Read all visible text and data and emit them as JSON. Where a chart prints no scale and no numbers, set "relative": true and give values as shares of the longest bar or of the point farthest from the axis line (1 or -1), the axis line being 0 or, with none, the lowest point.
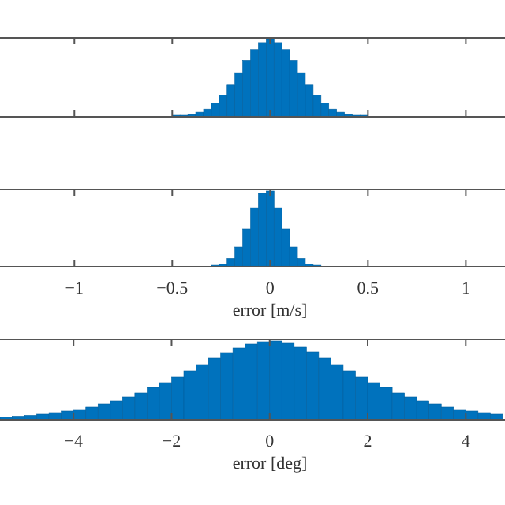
{
  "chart_data": [
    {
      "type": "bar",
      "relative": true,
      "color": "#0072bd",
      "tick_labels": false,
      "xlim": [
        -1.38,
        1.2
      ],
      "xticks": [
        -1,
        -0.5,
        0,
        0.5,
        1
      ],
      "x": [
        -0.48,
        -0.44,
        -0.4,
        -0.36,
        -0.32,
        -0.28,
        -0.24,
        -0.2,
        -0.16,
        -0.12,
        -0.08,
        -0.04,
        0,
        0.04,
        0.08,
        0.12,
        0.16,
        0.2,
        0.24,
        0.28,
        0.32,
        0.36,
        0.4,
        0.44,
        0.48
      ],
      "values": [
        0.02,
        0.02,
        0.03,
        0.06,
        0.1,
        0.18,
        0.28,
        0.41,
        0.57,
        0.73,
        0.87,
        0.96,
        1,
        0.96,
        0.87,
        0.73,
        0.57,
        0.41,
        0.28,
        0.18,
        0.1,
        0.06,
        0.03,
        0.02,
        0.02
      ]
    },
    {
      "type": "bar",
      "relative": true,
      "color": "#0072bd",
      "xlabel": "error [m/s]",
      "xlim": [
        -1.38,
        1.2
      ],
      "xticks": [
        {
          "value": -1,
          "label": "−1"
        },
        {
          "value": -0.5,
          "label": "−0.5"
        },
        {
          "value": 0,
          "label": "0"
        },
        {
          "value": 0.5,
          "label": "0.5"
        },
        {
          "value": 1,
          "label": "1"
        }
      ],
      "x": [
        -0.28,
        -0.24,
        -0.2,
        -0.16,
        -0.12,
        -0.08,
        -0.04,
        0,
        0.04,
        0.08,
        0.12,
        0.16,
        0.2,
        0.24
      ],
      "values": [
        0.02,
        0.035,
        0.11,
        0.26,
        0.5,
        0.78,
        0.97,
        1,
        0.78,
        0.5,
        0.26,
        0.11,
        0.035,
        0.02
      ]
    },
    {
      "type": "bar",
      "relative": true,
      "color": "#0072bd",
      "xlabel": "error [deg]",
      "xlim": [
        -5.5,
        4.8
      ],
      "xticks": [
        {
          "value": -4,
          "label": "−4"
        },
        {
          "value": -2,
          "label": "−2"
        },
        {
          "value": 0,
          "label": "0"
        },
        {
          "value": 2,
          "label": "2"
        },
        {
          "value": 4,
          "label": "4"
        }
      ],
      "x": [
        -5.375,
        -5.125,
        -4.875,
        -4.625,
        -4.375,
        -4.125,
        -3.875,
        -3.625,
        -3.375,
        -3.125,
        -2.875,
        -2.625,
        -2.375,
        -2.125,
        -1.875,
        -1.625,
        -1.375,
        -1.125,
        -0.875,
        -0.625,
        -0.375,
        -0.125,
        0.125,
        0.375,
        0.625,
        0.875,
        1.125,
        1.375,
        1.625,
        1.875,
        2.125,
        2.375,
        2.625,
        2.875,
        3.125,
        3.375,
        3.625,
        3.875,
        4.125,
        4.375,
        4.625
      ],
      "values": [
        0.035,
        0.045,
        0.055,
        0.07,
        0.09,
        0.11,
        0.13,
        0.16,
        0.2,
        0.24,
        0.29,
        0.34,
        0.41,
        0.47,
        0.54,
        0.62,
        0.7,
        0.78,
        0.85,
        0.91,
        0.96,
        0.99,
        1,
        0.97,
        0.92,
        0.86,
        0.78,
        0.7,
        0.62,
        0.54,
        0.47,
        0.41,
        0.34,
        0.29,
        0.24,
        0.2,
        0.16,
        0.13,
        0.11,
        0.09,
        0.07
      ]
    }
  ]
}
